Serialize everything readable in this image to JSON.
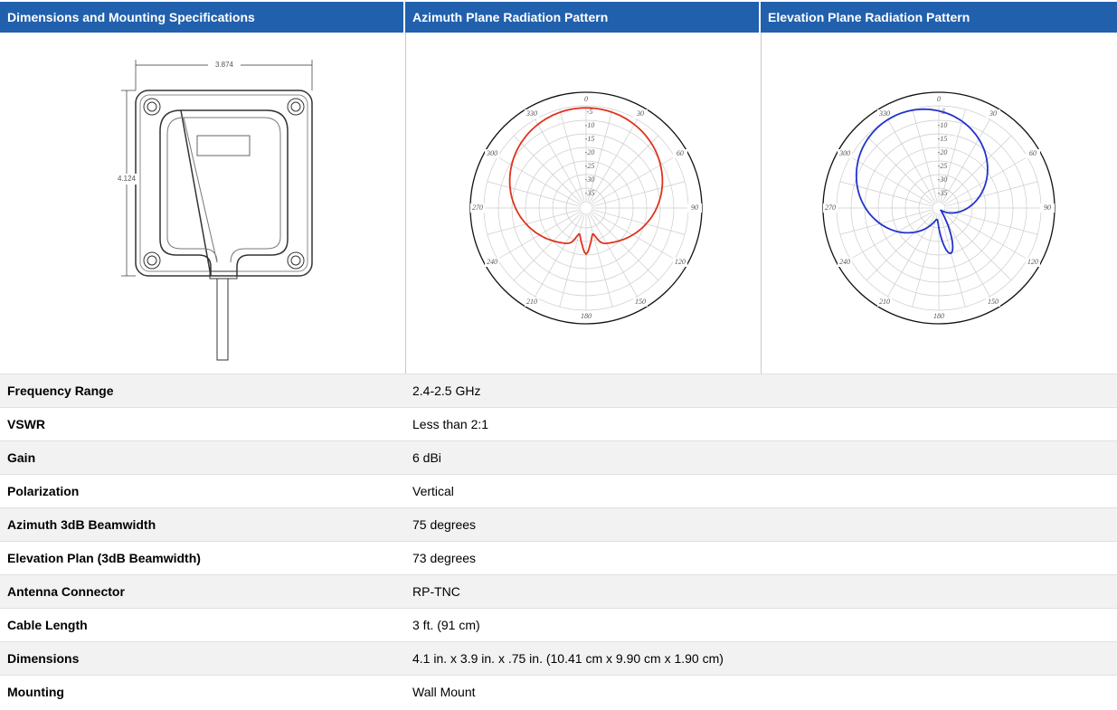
{
  "table": {
    "headers": [
      "Dimensions and Mounting Specifications",
      "Azimuth Plane Radiation Pattern",
      "Elevation Plane Radiation Pattern"
    ],
    "drawing": {
      "width_label": "3.874",
      "height_label": "4.124"
    },
    "azimuth": {
      "angle_labels": [
        "0",
        "30",
        "60",
        "90",
        "120",
        "150",
        "180",
        "210",
        "240",
        "270",
        "300",
        "330"
      ],
      "level_labels": [
        "-5",
        "-10",
        "-15",
        "-20",
        "-25",
        "-30",
        "-35"
      ]
    },
    "elevation": {
      "angle_labels": [
        "0",
        "30",
        "60",
        "90",
        "120",
        "150",
        "180",
        "210",
        "240",
        "270",
        "300",
        "330"
      ],
      "level_labels": [
        "-5",
        "-10",
        "-15",
        "-20",
        "-25",
        "-30",
        "-35"
      ]
    },
    "rows": [
      [
        "Frequency Range",
        "2.4-2.5 GHz"
      ],
      [
        "VSWR",
        "Less than 2:1"
      ],
      [
        "Gain",
        "6 dBi"
      ],
      [
        "Polarization",
        "Vertical"
      ],
      [
        "Azimuth 3dB Beamwidth",
        "75 degrees"
      ],
      [
        "Elevation Plan (3dB Beamwidth)",
        "73 degrees"
      ],
      [
        "Antenna Connector",
        "RP-TNC"
      ],
      [
        "Cable Length",
        "3 ft. (91 cm)"
      ],
      [
        "Dimensions",
        "4.1 in. x 3.9 in. x .75 in. (10.41 cm x 9.90 cm x 1.90 cm)"
      ],
      [
        "Mounting",
        "Wall Mount"
      ]
    ]
  }
}
